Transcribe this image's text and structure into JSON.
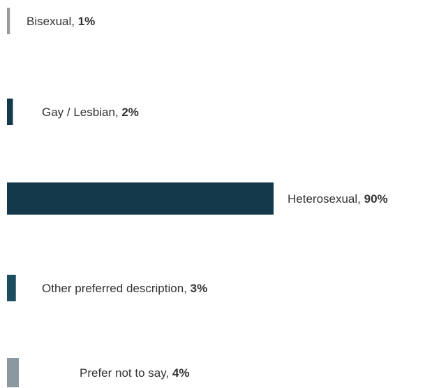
{
  "chart_data": {
    "type": "bar",
    "orientation": "horizontal",
    "categories": [
      "Bisexual",
      "Gay / Lesbian",
      "Heterosexual",
      "Other preferred description",
      "Prefer not to say"
    ],
    "values": [
      1,
      2,
      90,
      3,
      4
    ],
    "value_suffix": "%",
    "colors": [
      "#9a9a9a",
      "#13394b",
      "#13394b",
      "#1d4c5f",
      "#8b98a0"
    ],
    "label_separator": ", ",
    "title": "",
    "xlabel": "",
    "ylabel": "",
    "xlim": [
      0,
      90
    ],
    "grid": false,
    "legend": "none"
  }
}
